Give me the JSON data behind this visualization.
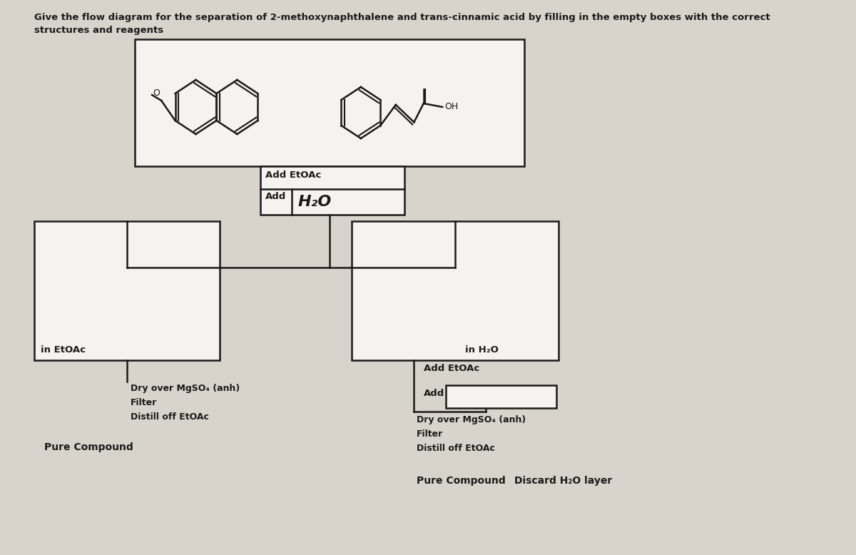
{
  "title_line1": "Give the flow diagram for the separation of 2-methoxynaphthalene and trans-cinnamic acid by filling in the empty boxes with the correct",
  "title_line2": "structures and reagents",
  "bg_color": "#d8d4cc",
  "box_color": "#f5f3ef",
  "line_color": "#1a1a1a",
  "text_color": "#1a1a1a",
  "add_etoac_text": "Add EtOAc",
  "add_h2o_text": "Add H₂O",
  "in_etoac_text": "in EtOAc",
  "in_h2o_text": "in H₂O",
  "add_etoac2_text": "Add EtOAc",
  "add_label": "Add",
  "left_steps": "Dry over MgSO₄ (anh)\nFilter\nDistill off EtOAc",
  "pure_compound_left": "Pure Compound",
  "right_steps": "Dry over MgSO₄ (anh)\nFilter\nDistill off EtOAc",
  "pure_compound_right": "Pure Compound",
  "discard_text": "Discard H₂O layer"
}
